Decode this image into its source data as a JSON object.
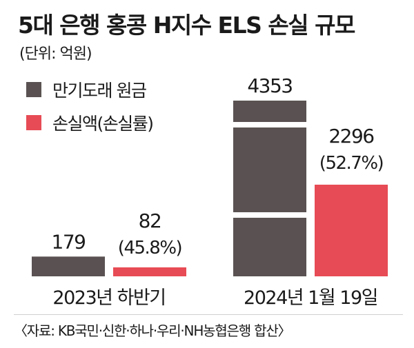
{
  "title": "5대 은행 홍콩 H지수 ELS 손실 규모",
  "unit": "(단위: 억원)",
  "source": "〈자료: KB국민·신한·하나·우리·NH농협은행 합산〉",
  "colors": {
    "principal": "#5a5252",
    "loss": "#e74b55"
  },
  "chart_data": {
    "type": "bar",
    "categories": [
      "2023년 하반기",
      "2024년 1월 19일"
    ],
    "series": [
      {
        "name": "만기도래 원금",
        "values": [
          179,
          4353
        ],
        "color": "#5a5252"
      },
      {
        "name": "손실액(손실률)",
        "values": [
          82,
          2296
        ],
        "color": "#e74b55",
        "loss_rate_labels": [
          "(45.8%)",
          "(52.7%)"
        ]
      }
    ],
    "value_labels": {
      "principal": [
        "179",
        "4353"
      ],
      "loss": [
        "82",
        "2296"
      ]
    },
    "axis_break_on": "만기도래 원금",
    "legend_position": "top-left",
    "grid": false
  }
}
